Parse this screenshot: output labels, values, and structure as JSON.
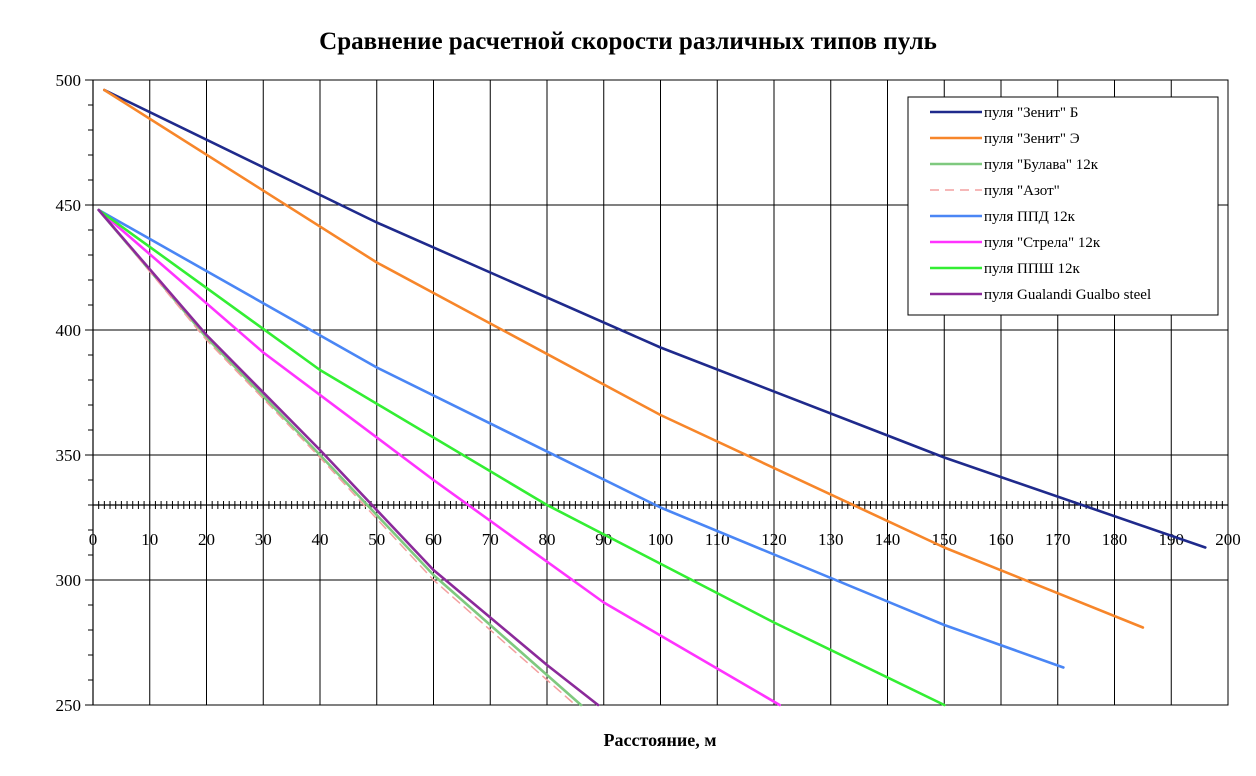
{
  "chart_data": {
    "type": "line",
    "title": "Сравнение расчетной скорости различных типов пуль",
    "xlabel": "Расстояние, м",
    "ylabel": "",
    "xlim": [
      0,
      200
    ],
    "ylim": [
      250,
      500
    ],
    "x_ticks": [
      0,
      10,
      20,
      30,
      40,
      50,
      60,
      70,
      80,
      90,
      100,
      110,
      120,
      130,
      140,
      150,
      160,
      170,
      180,
      190,
      200
    ],
    "y_ticks": [
      250,
      300,
      350,
      400,
      450,
      500
    ],
    "grid": true,
    "x_axis_crosses_at": 330,
    "legend_position": "top-right",
    "series": [
      {
        "name": "пуля \"Зенит\" Б",
        "color": "#1f2a8c",
        "dash": "solid",
        "points": [
          [
            2,
            496
          ],
          [
            50,
            443
          ],
          [
            100,
            393
          ],
          [
            150,
            349
          ],
          [
            196,
            313
          ]
        ]
      },
      {
        "name": "пуля \"Зенит\" Э",
        "color": "#f7862a",
        "dash": "solid",
        "points": [
          [
            2,
            496
          ],
          [
            50,
            427
          ],
          [
            100,
            366
          ],
          [
            150,
            313
          ],
          [
            185,
            281
          ]
        ]
      },
      {
        "name": "пуля \"Булава\" 12к",
        "color": "#7fc97f",
        "dash": "solid",
        "points": [
          [
            1,
            448
          ],
          [
            20,
            397
          ],
          [
            40,
            350
          ],
          [
            60,
            302
          ],
          [
            80,
            262
          ],
          [
            86,
            250
          ]
        ]
      },
      {
        "name": "пуля \"Азот\"",
        "color": "#f4a0a0",
        "dash": "dashed",
        "points": [
          [
            1,
            448
          ],
          [
            20,
            396
          ],
          [
            40,
            349
          ],
          [
            60,
            300
          ],
          [
            80,
            260
          ],
          [
            85,
            250
          ]
        ]
      },
      {
        "name": "пуля ППД 12к",
        "color": "#4a86f5",
        "dash": "solid",
        "points": [
          [
            1,
            448
          ],
          [
            50,
            385
          ],
          [
            100,
            329
          ],
          [
            150,
            282
          ],
          [
            171,
            265
          ]
        ]
      },
      {
        "name": "пуля \"Стрела\" 12к",
        "color": "#ff33ff",
        "dash": "solid",
        "points": [
          [
            1,
            448
          ],
          [
            30,
            391
          ],
          [
            60,
            340
          ],
          [
            90,
            291
          ],
          [
            121,
            250
          ]
        ]
      },
      {
        "name": "пуля ППШ 12к",
        "color": "#33ee33",
        "dash": "solid",
        "points": [
          [
            1,
            448
          ],
          [
            40,
            384
          ],
          [
            80,
            330
          ],
          [
            120,
            283
          ],
          [
            150,
            250
          ]
        ]
      },
      {
        "name": "пуля Gualandi Gualbo steel",
        "color": "#8b2a9a",
        "dash": "solid",
        "points": [
          [
            1,
            448
          ],
          [
            20,
            398
          ],
          [
            40,
            352
          ],
          [
            60,
            304
          ],
          [
            80,
            266
          ],
          [
            89,
            250
          ]
        ]
      }
    ]
  }
}
